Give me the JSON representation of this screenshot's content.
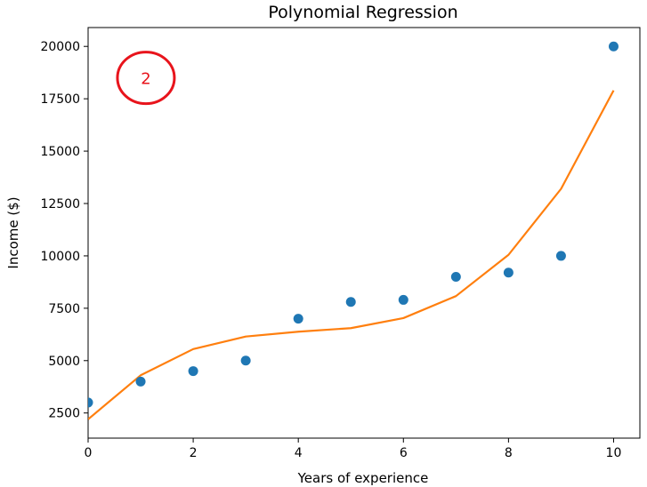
{
  "chart_data": {
    "type": "scatter",
    "title": "Polynomial Regression",
    "xlabel": "Years of experience",
    "ylabel": "Income ($)",
    "xlim": [
      0,
      10.5
    ],
    "ylim": [
      1300,
      20900
    ],
    "xticks": [
      0,
      2,
      4,
      6,
      8,
      10
    ],
    "yticks": [
      2500,
      5000,
      7500,
      10000,
      12500,
      15000,
      17500,
      20000
    ],
    "grid": false,
    "series": [
      {
        "kind": "scatter",
        "color": "#1f77b4",
        "x": [
          0,
          1,
          2,
          3,
          4,
          5,
          6,
          7,
          8,
          9,
          10
        ],
        "y": [
          3000,
          4000,
          4500,
          5000,
          7000,
          7800,
          7900,
          9000,
          9200,
          10000,
          20000
        ]
      },
      {
        "kind": "line",
        "color": "#ff7f0e",
        "x": [
          0,
          1,
          2,
          3,
          4,
          5,
          6,
          7,
          8,
          9,
          10
        ],
        "y": [
          2200,
          4300,
          5550,
          6150,
          6380,
          6550,
          7030,
          8080,
          10050,
          13200,
          17900
        ]
      }
    ],
    "annotations": [
      {
        "text": "2",
        "shape": "circle",
        "color": "#e8141c",
        "x": 1.1,
        "y": 18500
      }
    ]
  }
}
